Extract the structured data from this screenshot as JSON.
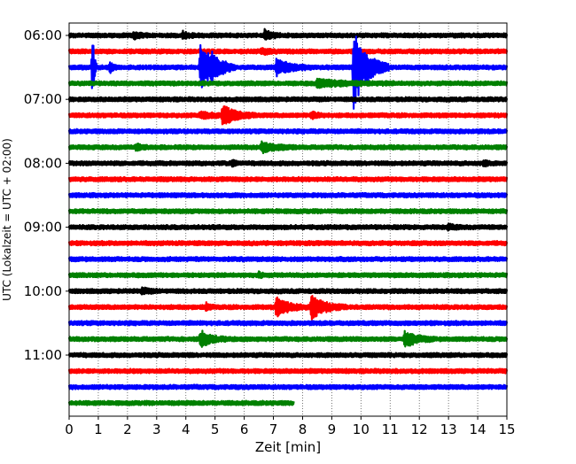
{
  "chart_data": {
    "type": "line",
    "title": "",
    "xlabel": "Zeit  [min]",
    "ylabel": "UTC (Lokalzeit = UTC + 02:00)",
    "xlim": [
      0,
      15
    ],
    "x_ticks": [
      0,
      1,
      2,
      3,
      4,
      5,
      6,
      7,
      8,
      9,
      10,
      11,
      12,
      13,
      14,
      15
    ],
    "x_tick_labels": [
      "0",
      "1",
      "2",
      "3",
      "4",
      "5",
      "6",
      "7",
      "8",
      "9",
      "10",
      "11",
      "12",
      "13",
      "14",
      "15"
    ],
    "y_tick_labels": [
      {
        "row": 0,
        "label": "06:00"
      },
      {
        "row": 4,
        "label": "07:00"
      },
      {
        "row": 8,
        "label": "08:00"
      },
      {
        "row": 12,
        "label": "09:00"
      },
      {
        "row": 16,
        "label": "10:00"
      },
      {
        "row": 20,
        "label": "11:00"
      }
    ],
    "grid": "vertical dotted at each minute",
    "trace_colors": [
      "#000000",
      "#ff0000",
      "#0000ff",
      "#008000"
    ],
    "row_minutes": 15,
    "rows": [
      {
        "start": "06:00",
        "color": "#000000",
        "end_min": 15,
        "events": [
          {
            "t": 2.2,
            "amp": 0.35,
            "dur": 0.2
          },
          {
            "t": 3.9,
            "amp": 0.35,
            "dur": 0.2
          },
          {
            "t": 6.7,
            "amp": 0.6,
            "dur": 0.2
          }
        ]
      },
      {
        "start": "06:15",
        "color": "#ff0000",
        "end_min": 15,
        "events": [
          {
            "t": 6.6,
            "amp": 0.25,
            "dur": 0.3
          }
        ]
      },
      {
        "start": "06:30",
        "color": "#0000ff",
        "end_min": 15,
        "events": [
          {
            "t": 0.8,
            "amp": 5.0,
            "dur": 0.05
          },
          {
            "t": 1.4,
            "amp": 0.6,
            "dur": 0.1
          },
          {
            "t": 4.5,
            "amp": 3.0,
            "dur": 0.4
          },
          {
            "t": 4.9,
            "amp": 0.8,
            "dur": 0.25
          },
          {
            "t": 7.1,
            "amp": 1.0,
            "dur": 0.4
          },
          {
            "t": 9.75,
            "amp": 5.0,
            "dur": 0.4
          }
        ]
      },
      {
        "start": "06:45",
        "color": "#008000",
        "end_min": 15,
        "events": [
          {
            "t": 8.5,
            "amp": 0.4,
            "dur": 0.9
          }
        ]
      },
      {
        "start": "07:00",
        "color": "#000000",
        "end_min": 15,
        "events": []
      },
      {
        "start": "07:15",
        "color": "#ff0000",
        "end_min": 15,
        "events": [
          {
            "t": 4.5,
            "amp": 0.35,
            "dur": 0.4
          },
          {
            "t": 5.25,
            "amp": 1.2,
            "dur": 0.4
          },
          {
            "t": 8.3,
            "amp": 0.35,
            "dur": 0.2
          }
        ]
      },
      {
        "start": "07:30",
        "color": "#0000ff",
        "end_min": 15,
        "events": []
      },
      {
        "start": "07:45",
        "color": "#008000",
        "end_min": 15,
        "events": [
          {
            "t": 2.3,
            "amp": 0.3,
            "dur": 0.2
          },
          {
            "t": 6.6,
            "amp": 0.55,
            "dur": 0.4
          }
        ]
      },
      {
        "start": "08:00",
        "color": "#000000",
        "end_min": 15,
        "events": [
          {
            "t": 5.6,
            "amp": 0.4,
            "dur": 0.1
          },
          {
            "t": 14.2,
            "amp": 0.35,
            "dur": 0.1
          }
        ]
      },
      {
        "start": "08:15",
        "color": "#ff0000",
        "end_min": 15,
        "events": []
      },
      {
        "start": "08:30",
        "color": "#0000ff",
        "end_min": 15,
        "events": []
      },
      {
        "start": "08:45",
        "color": "#008000",
        "end_min": 15,
        "events": []
      },
      {
        "start": "09:00",
        "color": "#000000",
        "end_min": 15,
        "events": [
          {
            "t": 13.0,
            "amp": 0.25,
            "dur": 0.2
          }
        ]
      },
      {
        "start": "09:15",
        "color": "#ff0000",
        "end_min": 15,
        "events": []
      },
      {
        "start": "09:30",
        "color": "#0000ff",
        "end_min": 15,
        "events": []
      },
      {
        "start": "09:45",
        "color": "#008000",
        "end_min": 15,
        "events": [
          {
            "t": 6.5,
            "amp": 0.3,
            "dur": 0.1
          }
        ]
      },
      {
        "start": "10:00",
        "color": "#000000",
        "end_min": 15,
        "events": [
          {
            "t": 2.5,
            "amp": 0.3,
            "dur": 0.2
          }
        ]
      },
      {
        "start": "10:15",
        "color": "#ff0000",
        "end_min": 15,
        "events": [
          {
            "t": 4.7,
            "amp": 0.4,
            "dur": 0.1
          },
          {
            "t": 7.1,
            "amp": 1.1,
            "dur": 0.4
          },
          {
            "t": 8.3,
            "amp": 1.4,
            "dur": 0.4
          }
        ]
      },
      {
        "start": "10:30",
        "color": "#0000ff",
        "end_min": 15,
        "events": []
      },
      {
        "start": "10:45",
        "color": "#008000",
        "end_min": 15,
        "events": [
          {
            "t": 4.5,
            "amp": 1.0,
            "dur": 0.3
          },
          {
            "t": 11.5,
            "amp": 1.0,
            "dur": 0.35
          }
        ]
      },
      {
        "start": "11:00",
        "color": "#000000",
        "end_min": 15,
        "events": []
      },
      {
        "start": "11:15",
        "color": "#ff0000",
        "end_min": 15,
        "events": []
      },
      {
        "start": "11:30",
        "color": "#0000ff",
        "end_min": 15,
        "events": []
      },
      {
        "start": "11:45",
        "color": "#008000",
        "end_min": 7.7,
        "events": []
      }
    ]
  }
}
